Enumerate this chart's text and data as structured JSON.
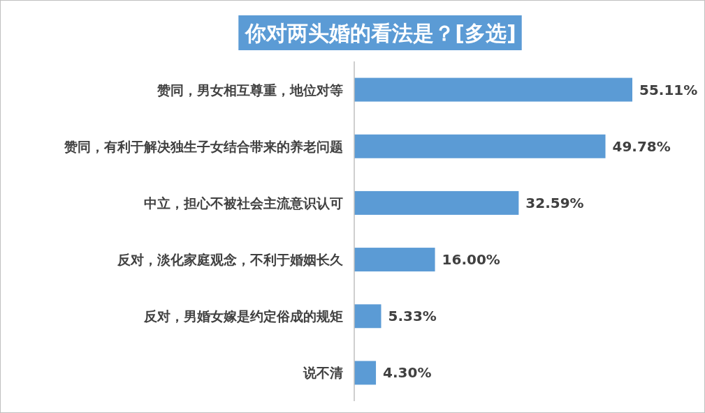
{
  "chart_data": {
    "type": "bar",
    "orientation": "horizontal",
    "title": "你对两头婚的看法是？[多选]",
    "categories": [
      "赞同，男女相互尊重，地位对等",
      "赞同，有利于解决独生子女结合带来的养老问题",
      "中立，担心不被社会主流意识认可",
      "反对，淡化家庭观念，不利于婚姻长久",
      "反对，男婚女嫁是约定俗成的规矩",
      "说不清"
    ],
    "values": [
      55.11,
      49.78,
      32.59,
      16.0,
      5.33,
      4.3
    ],
    "value_labels": [
      "55.11%",
      "49.78%",
      "32.59%",
      "16.00%",
      "5.33%",
      "4.30%"
    ],
    "color": "#5b9bd5"
  }
}
